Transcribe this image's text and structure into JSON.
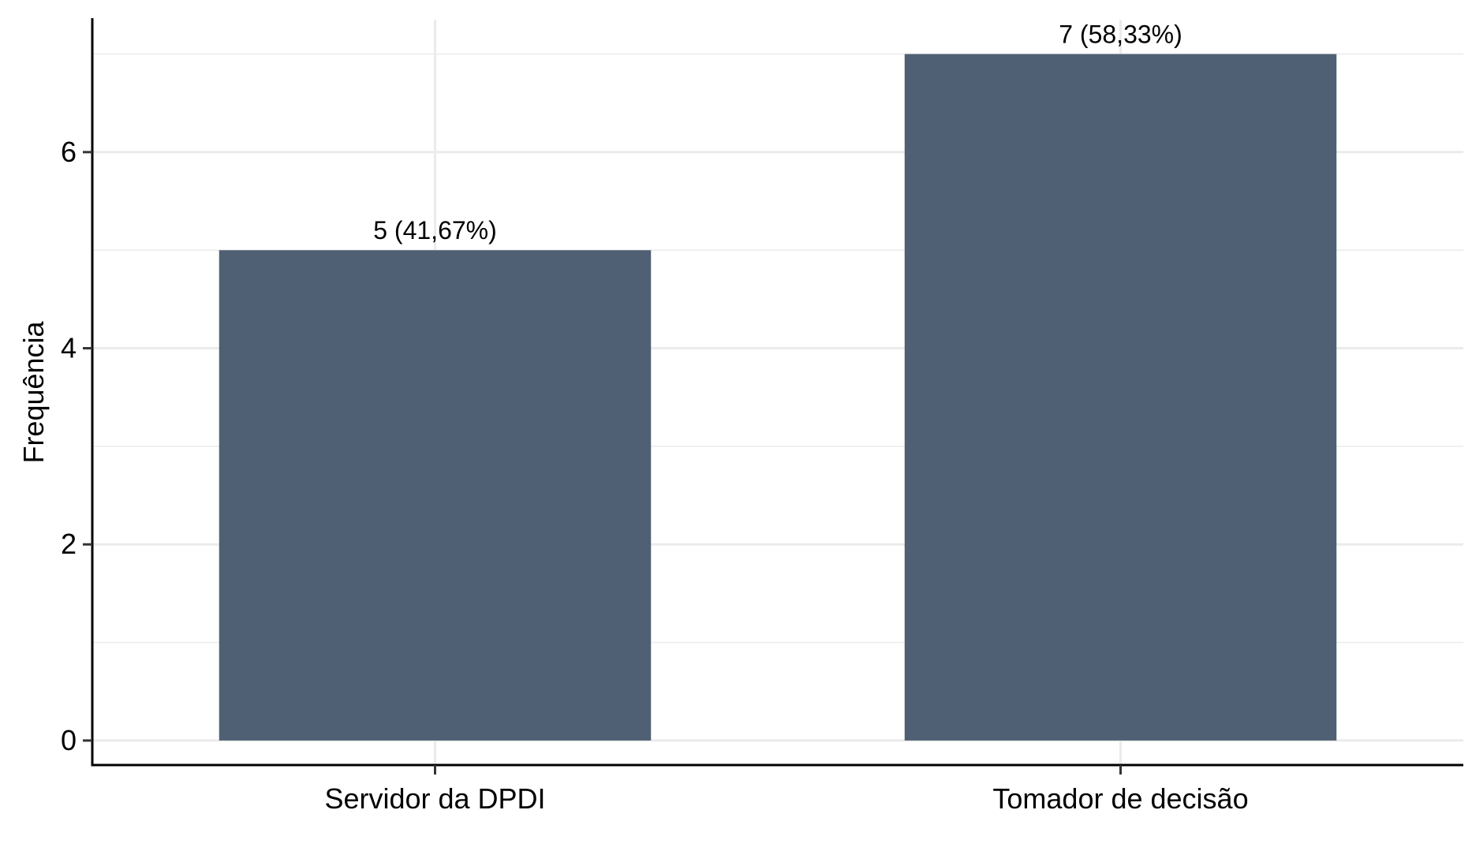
{
  "chart_data": {
    "type": "bar",
    "categories": [
      "Servidor da DPDI",
      "Tomador de decisão"
    ],
    "values": [
      5,
      7
    ],
    "data_labels": [
      "5 (41,67%)",
      "7 (58,33%)"
    ],
    "title": "",
    "xlabel": "",
    "ylabel": "Frequência",
    "ylim": [
      -0.25,
      7.35
    ],
    "yticks": [
      0,
      2,
      4,
      6
    ],
    "ytick_labels": [
      "0",
      "2",
      "4",
      "6"
    ],
    "grid": true,
    "legend": "none",
    "colors": {
      "bar": "#506074",
      "grid": "#ebebeb",
      "axis": "#000000"
    }
  }
}
